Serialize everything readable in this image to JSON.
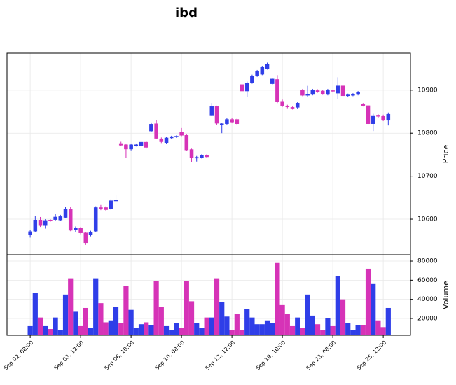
{
  "chart_data": [
    {
      "type": "candlestick",
      "title": "ibd",
      "ylabel": "Price",
      "open": [
        10563,
        10572,
        10598,
        10585,
        10598,
        10599,
        10598,
        10604,
        10624,
        10576,
        10580,
        10568,
        10563,
        10572,
        10627,
        10627,
        10624,
        10643,
        10776,
        10773,
        10763,
        10771,
        10770,
        10779,
        10805,
        10822,
        10787,
        10778,
        10789,
        10791,
        10803,
        10795,
        10762,
        10742,
        10743,
        10749,
        10842,
        10862,
        10820,
        10822,
        10832,
        10832,
        10913,
        10898,
        10917,
        10933,
        10937,
        10950,
        10915,
        10925,
        10874,
        10863,
        10860,
        10860,
        10900,
        10888,
        10890,
        10899,
        10898,
        10890,
        10899,
        10893,
        10910,
        10887,
        10888,
        10890,
        10868,
        10864,
        10822,
        10842,
        10840,
        10830
      ],
      "high": [
        10575,
        10608,
        10605,
        10600,
        10600,
        10612,
        10610,
        10628,
        10628,
        10583,
        10582,
        10570,
        10573,
        10630,
        10633,
        10630,
        10646,
        10656,
        10780,
        10776,
        10776,
        10776,
        10782,
        10782,
        10825,
        10830,
        10790,
        10792,
        10794,
        10795,
        10812,
        10797,
        10764,
        10747,
        10751,
        10751,
        10870,
        10864,
        10824,
        10835,
        10836,
        10834,
        10916,
        10920,
        10936,
        10947,
        10956,
        10964,
        10929,
        10935,
        10878,
        10866,
        10862,
        10873,
        10903,
        10910,
        10903,
        10902,
        10901,
        10903,
        10901,
        10930,
        10912,
        10892,
        10893,
        10898,
        10870,
        10866,
        10845,
        10844,
        10843,
        10848
      ],
      "low": [
        10557,
        10570,
        10582,
        10578,
        10594,
        10597,
        10596,
        10602,
        10572,
        10570,
        10565,
        10540,
        10560,
        10570,
        10621,
        10619,
        10622,
        10641,
        10770,
        10742,
        10760,
        10769,
        10768,
        10764,
        10803,
        10786,
        10777,
        10776,
        10787,
        10789,
        10793,
        10758,
        10733,
        10734,
        10741,
        10743,
        10840,
        10820,
        10800,
        10820,
        10823,
        10820,
        10895,
        10885,
        10915,
        10931,
        10935,
        10948,
        10913,
        10870,
        10861,
        10858,
        10855,
        10857,
        10886,
        10885,
        10888,
        10894,
        10889,
        10888,
        10896,
        10880,
        10884,
        10884,
        10886,
        10888,
        10862,
        10820,
        10805,
        10836,
        10828,
        10818
      ],
      "close": [
        10571,
        10598,
        10585,
        10597,
        10596,
        10605,
        10606,
        10624,
        10574,
        10580,
        10568,
        10545,
        10570,
        10627,
        10624,
        10622,
        10643,
        10644,
        10772,
        10763,
        10773,
        10773,
        10779,
        10767,
        10821,
        10788,
        10780,
        10789,
        10792,
        10793,
        10795,
        10761,
        10743,
        10744,
        10749,
        10745,
        10862,
        10823,
        10822,
        10832,
        10826,
        10822,
        10898,
        10917,
        10933,
        10944,
        10953,
        10960,
        10926,
        10874,
        10864,
        10861,
        10858,
        10870,
        10888,
        10891,
        10900,
        10896,
        10891,
        10900,
        10898,
        10910,
        10887,
        10889,
        10891,
        10895,
        10864,
        10822,
        10841,
        10839,
        10830,
        10844
      ],
      "up_color": "#2f3ee8",
      "down_color": "#d633b7",
      "xlim": [
        -4.6,
        75.4
      ],
      "ylim": [
        10517,
        10986
      ],
      "yticks": [
        10600,
        10700,
        10800,
        10900
      ],
      "grid": true
    },
    {
      "type": "bar",
      "ylabel": "Volume",
      "categories": [
        "Sep 02, 08:00",
        null,
        null,
        null,
        null,
        null,
        null,
        null,
        null,
        null,
        "Sep 03, 12:00",
        null,
        null,
        null,
        null,
        null,
        null,
        null,
        null,
        null,
        "Sep 06, 10:00",
        null,
        null,
        null,
        null,
        null,
        null,
        null,
        null,
        null,
        "Sep 10, 08:00",
        null,
        null,
        null,
        null,
        null,
        null,
        null,
        null,
        null,
        "Sep 12, 12:00",
        null,
        null,
        null,
        null,
        null,
        null,
        null,
        null,
        null,
        "Sep 19, 10:00",
        null,
        null,
        null,
        null,
        null,
        null,
        null,
        null,
        null,
        "Sep 23, 08:00",
        null,
        null,
        null,
        null,
        null,
        null,
        null,
        null,
        null,
        "Sep 25, 12:00",
        null
      ],
      "values": [
        12000,
        47000,
        21000,
        12000,
        9000,
        21000,
        8000,
        45000,
        62000,
        27000,
        12000,
        31000,
        10000,
        62000,
        36000,
        16000,
        18000,
        32000,
        15000,
        54000,
        29000,
        10000,
        14000,
        16000,
        13000,
        59000,
        32000,
        12000,
        8000,
        15000,
        10000,
        59000,
        38000,
        15000,
        10000,
        21000,
        21000,
        62000,
        37000,
        22000,
        8000,
        25000,
        8000,
        30000,
        21000,
        14000,
        14000,
        18000,
        15000,
        78000,
        34000,
        25000,
        12000,
        21000,
        10000,
        45000,
        23000,
        14000,
        8000,
        20000,
        12000,
        64000,
        40000,
        15000,
        8000,
        13000,
        13000,
        72000,
        56000,
        18000,
        11000,
        31000
      ],
      "xlim": [
        -4.6,
        75.4
      ],
      "ylim": [
        2440,
        86600
      ],
      "yticks": [
        20000,
        40000,
        60000,
        80000
      ],
      "grid": true
    }
  ]
}
